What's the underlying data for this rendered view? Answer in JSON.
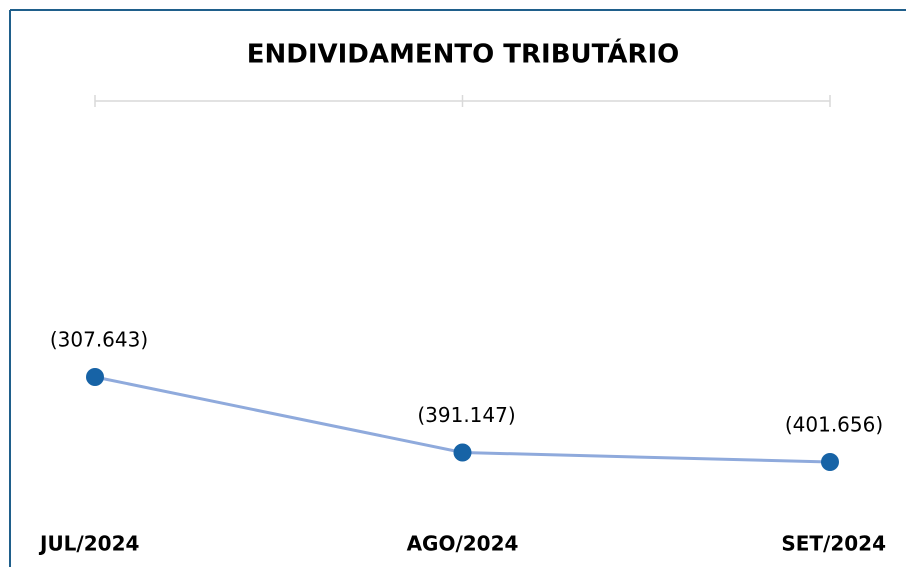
{
  "chart_data": {
    "type": "line",
    "title": "ENDIVIDAMENTO TRIBUTÁRIO",
    "categories": [
      "JUL/2024",
      "AGO/2024",
      "SET/2024"
    ],
    "values": [
      -307643,
      -391147,
      -401656
    ],
    "value_labels": [
      "(307.643)",
      "(391.147)",
      "(401.656)"
    ],
    "color": "#8faadc",
    "marker_color": "#1763a6"
  }
}
